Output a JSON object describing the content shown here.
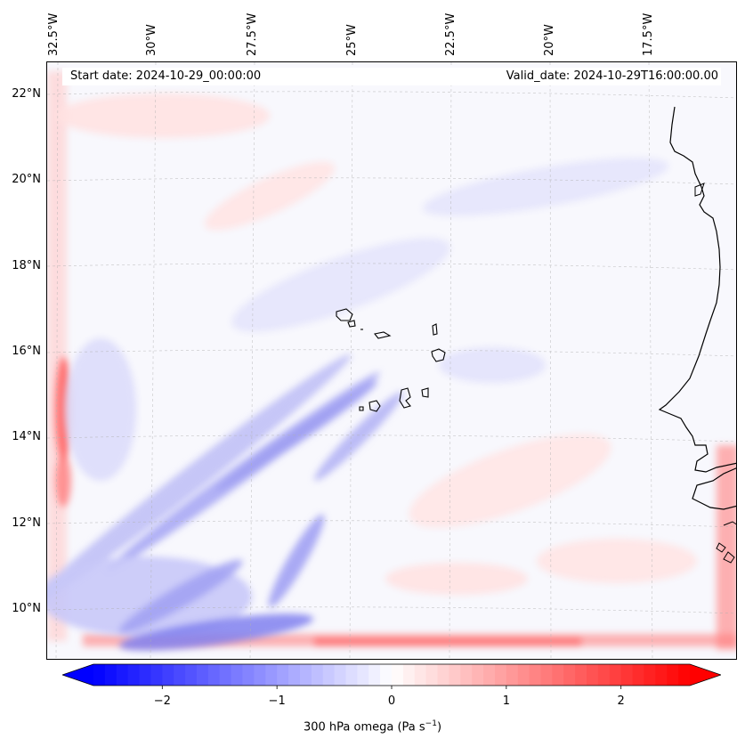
{
  "map": {
    "start_date": "Start date: 2024-10-29_00:00:00",
    "valid_date": "Valid_date: 2024-10-29T16:00:00.00",
    "lon_labels": [
      "32.5°W",
      "30°W",
      "27.5°W",
      "25°W",
      "22.5°W",
      "20°W",
      "17.5°W"
    ],
    "lat_labels": [
      "22°N",
      "20°N",
      "18°N",
      "16°N",
      "14°N",
      "12°N",
      "10°N"
    ],
    "colors": {
      "background": "#f8f8fd",
      "negative": "#0000ff",
      "positive": "#ff0000",
      "coastline": "#000000",
      "gridline": "#b0b0b0"
    }
  },
  "colorbar": {
    "ticks": [
      "−2",
      "−1",
      "0",
      "1",
      "2"
    ],
    "tick_values": [
      -2,
      -1,
      0,
      1,
      2
    ],
    "range": [
      -2.6,
      2.6
    ],
    "title_prefix": "300 hPa omega (Pa s",
    "title_exp": "−1",
    "title_suffix": ")",
    "colors": [
      "#0000ff",
      "#ffffff",
      "#ff0000"
    ]
  }
}
